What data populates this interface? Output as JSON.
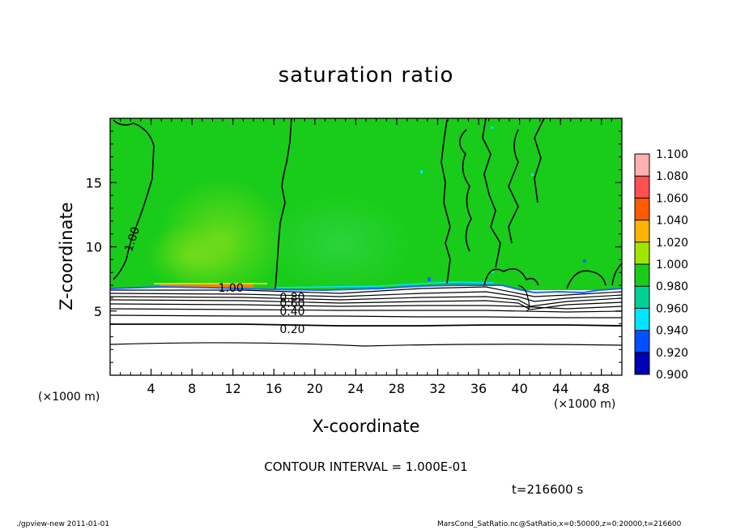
{
  "chart_data": {
    "type": "heatmap",
    "title": "saturation ratio",
    "xlabel": "X-coordinate",
    "ylabel": "Z-coordinate",
    "x_unit": "(×1000 m)",
    "x_unit_right": "(×1000 m)",
    "xlim": [
      0,
      50
    ],
    "ylim": [
      0,
      20
    ],
    "x_ticks": [
      "4",
      "8",
      "12",
      "16",
      "20",
      "24",
      "28",
      "32",
      "36",
      "40",
      "44",
      "48"
    ],
    "x_tick_values": [
      4,
      8,
      12,
      16,
      20,
      24,
      28,
      32,
      36,
      40,
      44,
      48
    ],
    "y_ticks": [
      "5",
      "10",
      "15"
    ],
    "y_tick_values": [
      5,
      10,
      15
    ],
    "colorbar": {
      "labels": [
        "1.100",
        "1.080",
        "1.060",
        "1.040",
        "1.020",
        "1.000",
        "0.980",
        "0.960",
        "0.940",
        "0.920",
        "0.900"
      ],
      "colors": [
        "#ffb0b0",
        "#ff5050",
        "#ff5a00",
        "#ffb400",
        "#a0e600",
        "#19cc19",
        "#00d296",
        "#00e6ff",
        "#0050ff",
        "#0000b4",
        "#7800b4"
      ]
    },
    "contour_labels": [
      {
        "text": "1.00",
        "x": 2.5,
        "z": 10.5
      },
      {
        "text": "1.00",
        "x": 11.8,
        "z": 6.8
      },
      {
        "text": "0.80",
        "x": 17.8,
        "z": 6.1
      },
      {
        "text": "0.60",
        "x": 17.8,
        "z": 5.6
      },
      {
        "text": "0.40",
        "x": 17.8,
        "z": 5.0
      },
      {
        "text": "0.20",
        "x": 17.8,
        "z": 3.6
      }
    ],
    "contour_interval_text": "CONTOUR INTERVAL = 1.000E-01",
    "time_text": "t=216600 s"
  },
  "footer": {
    "left": "./gpview-new   2011-01-01",
    "right": "MarsCond_SatRatio.nc@SatRatio,x=0:50000,z=0:20000,t=216600"
  }
}
